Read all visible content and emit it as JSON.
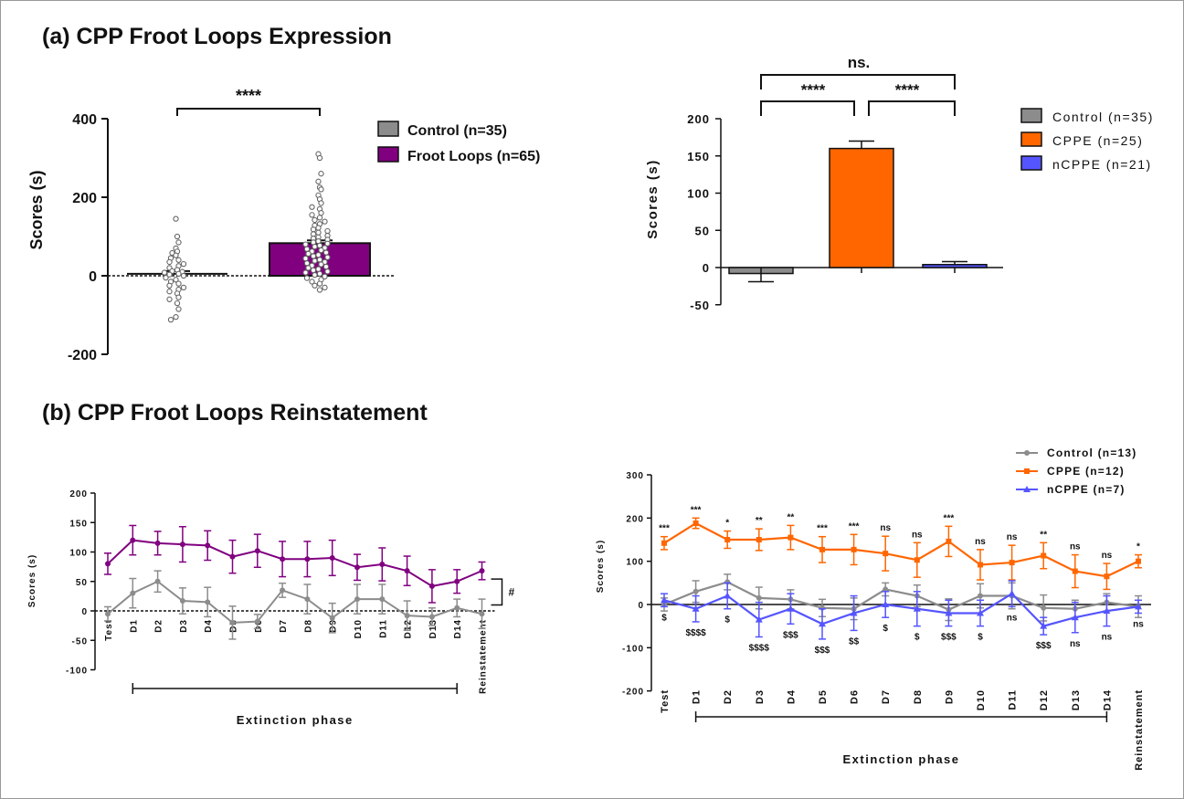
{
  "panel_a": {
    "title": "(a) CPP Froot Loops Expression"
  },
  "panel_b": {
    "title": "(b) CPP Froot Loops Reinstatement"
  },
  "colors": {
    "control": "#8c8c8c",
    "froot": "#800080",
    "cppe": "#ff6600",
    "ncppe": "#5555ff"
  },
  "chart_data": [
    {
      "id": "a1",
      "type": "bar",
      "categories": [
        "Control (n=35)",
        "Froot Loops (n=65)"
      ],
      "values": [
        5,
        83
      ],
      "errors": [
        7,
        7
      ],
      "ylabel": "Scores (s)",
      "ylim": [
        -200,
        400
      ],
      "yticks": [
        "-200",
        "0",
        "200",
        "400"
      ],
      "legend": [
        "Control (n=35)",
        "Froot Loops (n=65)"
      ],
      "legend_position": "right",
      "significance": [
        {
          "from": 0,
          "to": 1,
          "label": "****"
        }
      ],
      "points": [
        [
          145,
          100,
          85,
          70,
          62,
          58,
          52,
          45,
          40,
          35,
          30,
          25,
          20,
          15,
          12,
          10,
          8,
          5,
          3,
          0,
          -5,
          -10,
          -15,
          -20,
          -25,
          -30,
          -35,
          -40,
          -45,
          -55,
          -60,
          -70,
          -85,
          -105,
          -112
        ],
        [
          310,
          300,
          260,
          240,
          225,
          220,
          205,
          195,
          185,
          175,
          170,
          160,
          155,
          148,
          142,
          138,
          132,
          128,
          122,
          118,
          114,
          110,
          106,
          102,
          98,
          95,
          92,
          88,
          85,
          82,
          80,
          77,
          74,
          71,
          68,
          65,
          62,
          59,
          56,
          53,
          50,
          47,
          44,
          41,
          38,
          35,
          32,
          29,
          26,
          23,
          20,
          17,
          14,
          11,
          8,
          5,
          2,
          -2,
          -6,
          -10,
          -15,
          -20,
          -25,
          -30,
          -36
        ]
      ]
    },
    {
      "id": "a2",
      "type": "bar",
      "categories": [
        "Control (n=35)",
        "CPPE (n=25)",
        "nCPPE (n=21)"
      ],
      "values": [
        -8,
        160,
        4
      ],
      "errors": [
        11,
        10,
        4
      ],
      "ylabel": "Scores (s)",
      "ylim": [
        -50,
        200
      ],
      "yticks": [
        "-50",
        "0",
        "50",
        "100",
        "150",
        "200"
      ],
      "legend": [
        "Control (n=35)",
        "CPPE (n=25)",
        "nCPPE (n=21)"
      ],
      "legend_position": "right",
      "significance": [
        {
          "from": 0,
          "to": 1,
          "label": "****"
        },
        {
          "from": 1,
          "to": 2,
          "label": "****"
        },
        {
          "from": 0,
          "to": 2,
          "label": "ns."
        }
      ]
    },
    {
      "id": "b1",
      "type": "line",
      "x": [
        "Test",
        "D1",
        "D2",
        "D3",
        "D4",
        "D5",
        "D6",
        "D7",
        "D8",
        "D9",
        "D10",
        "D11",
        "D12",
        "D13",
        "D14",
        "Reinstatement"
      ],
      "series": [
        {
          "values": [
            80,
            120,
            115,
            113,
            111,
            92,
            102,
            88,
            88,
            90,
            74,
            79,
            68,
            42,
            50,
            68
          ],
          "errors": [
            18,
            25,
            20,
            30,
            25,
            28,
            28,
            30,
            30,
            30,
            22,
            28,
            25,
            28,
            20,
            15
          ]
        },
        {
          "values": [
            -5,
            30,
            50,
            17,
            15,
            -20,
            -18,
            35,
            20,
            -12,
            20,
            20,
            -8,
            -10,
            5,
            -5
          ],
          "errors": [
            12,
            25,
            18,
            22,
            25,
            28,
            12,
            12,
            25,
            25,
            25,
            25,
            25,
            15,
            15,
            25
          ]
        }
      ],
      "xlabel": "Extinction phase",
      "ylabel": "Scores (s)",
      "ylim": [
        -100,
        200
      ],
      "yticks": [
        "-100",
        "-50",
        "0",
        "50",
        "100",
        "150",
        "200"
      ],
      "bracket_from": "D1",
      "bracket_to": "D14",
      "bracket_label": "#"
    },
    {
      "id": "b2",
      "type": "line",
      "x": [
        "Test",
        "D1",
        "D2",
        "D3",
        "D4",
        "D5",
        "D6",
        "D7",
        "D8",
        "D9",
        "D10",
        "D11",
        "D12",
        "D13",
        "D14",
        "Reinstatement"
      ],
      "series": [
        {
          "name": "Control (n=13)",
          "values": [
            0,
            30,
            52,
            15,
            12,
            -8,
            -10,
            35,
            20,
            -12,
            20,
            20,
            -8,
            -10,
            5,
            -5
          ],
          "errors": [
            15,
            25,
            18,
            25,
            22,
            20,
            25,
            15,
            25,
            25,
            28,
            30,
            30,
            20,
            20,
            25
          ]
        },
        {
          "name": "CPPE (n=12)",
          "values": [
            142,
            188,
            150,
            150,
            155,
            127,
            127,
            118,
            103,
            146,
            92,
            97,
            113,
            77,
            65,
            100
          ],
          "errors": [
            15,
            12,
            20,
            25,
            28,
            30,
            35,
            40,
            40,
            35,
            35,
            40,
            30,
            38,
            30,
            15
          ]
        },
        {
          "name": "nCPPE (n=7)",
          "values": [
            10,
            -10,
            20,
            -35,
            -10,
            -45,
            -20,
            0,
            -10,
            -20,
            -20,
            25,
            -50,
            -30,
            -15,
            -5
          ],
          "errors": [
            15,
            30,
            30,
            40,
            35,
            35,
            40,
            30,
            40,
            30,
            30,
            30,
            20,
            35,
            35,
            15
          ]
        }
      ],
      "xlabel": "Extinction phase",
      "ylabel": "Scores (s)",
      "ylim": [
        -200,
        300
      ],
      "yticks": [
        "-200",
        "-100",
        "0",
        "100",
        "200",
        "300"
      ],
      "legend_position": "top-right",
      "sig_top": [
        "***",
        "***",
        "*",
        "**",
        "**",
        "***",
        "***",
        "ns",
        "ns",
        "***",
        "ns",
        "ns",
        "**",
        "ns",
        "ns",
        "*"
      ],
      "sig_bottom": [
        "$",
        "$$$$",
        "$",
        "$$$$",
        "$$$",
        "$$$",
        "$$",
        "$",
        "$",
        "$$$",
        "$",
        "ns",
        "$$$",
        "ns",
        "ns",
        "ns"
      ],
      "bracket_from": "D1",
      "bracket_to": "D14"
    }
  ]
}
